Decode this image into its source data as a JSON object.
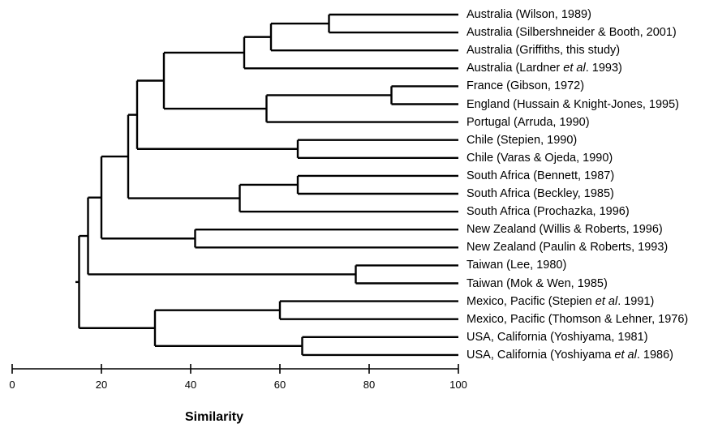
{
  "leaves": [
    {
      "pre": "Australia (Wilson, 1989)"
    },
    {
      "pre": "Australia (Silbershneider & Booth, 2001)"
    },
    {
      "pre": "Australia (Griffiths, this study)"
    },
    {
      "pre": "Australia (Lardner ",
      "it": "et al",
      "post": ". 1993)"
    },
    {
      "pre": "France (Gibson, 1972)"
    },
    {
      "pre": "England (Hussain & Knight-Jones, 1995)"
    },
    {
      "pre": "Portugal (Arruda, 1990)"
    },
    {
      "pre": "Chile (Stepien, 1990)"
    },
    {
      "pre": "Chile (Varas & Ojeda, 1990)"
    },
    {
      "pre": "South Africa (Bennett, 1987)"
    },
    {
      "pre": "South Africa (Beckley, 1985)"
    },
    {
      "pre": "South Africa (Prochazka, 1996)"
    },
    {
      "pre": "New Zealand (Willis & Roberts, 1996)"
    },
    {
      "pre": "New Zealand (Paulin & Roberts, 1993)"
    },
    {
      "pre": "Taiwan (Lee, 1980)"
    },
    {
      "pre": "Taiwan (Mok & Wen, 1985)"
    },
    {
      "pre": "Mexico, Pacific (Stepien ",
      "it": "et al",
      "post": ". 1991)"
    },
    {
      "pre": "Mexico, Pacific (Thomson & Lehner, 1976)"
    },
    {
      "pre": "USA, California (Yoshiyama, 1981)"
    },
    {
      "pre": "USA, California (Yoshiyama ",
      "it": "et al",
      "post": ". 1986)"
    }
  ],
  "merges": [
    {
      "a": 0,
      "b": 1,
      "sim": 71
    },
    {
      "a": 20,
      "b": 2,
      "sim": 58
    },
    {
      "a": 21,
      "b": 3,
      "sim": 52
    },
    {
      "a": 4,
      "b": 5,
      "sim": 85
    },
    {
      "a": 23,
      "b": 6,
      "sim": 57
    },
    {
      "a": 22,
      "b": 24,
      "sim": 34
    },
    {
      "a": 7,
      "b": 8,
      "sim": 64
    },
    {
      "a": 25,
      "b": 26,
      "sim": 28
    },
    {
      "a": 9,
      "b": 10,
      "sim": 64
    },
    {
      "a": 28,
      "b": 11,
      "sim": 51
    },
    {
      "a": 27,
      "b": 29,
      "sim": 26
    },
    {
      "a": 12,
      "b": 13,
      "sim": 41
    },
    {
      "a": 30,
      "b": 31,
      "sim": 20
    },
    {
      "a": 14,
      "b": 15,
      "sim": 77
    },
    {
      "a": 32,
      "b": 33,
      "sim": 17
    },
    {
      "a": 16,
      "b": 17,
      "sim": 60
    },
    {
      "a": 18,
      "b": 19,
      "sim": 65
    },
    {
      "a": 35,
      "b": 36,
      "sim": 32
    },
    {
      "a": 34,
      "b": 37,
      "sim": 15
    }
  ],
  "axis": {
    "title": "Similarity",
    "min": 0,
    "max": 100,
    "ticks": [
      0,
      20,
      40,
      60,
      80,
      100
    ],
    "tick_labels": [
      "0",
      "20",
      "40",
      "60",
      "80",
      "100"
    ]
  }
}
